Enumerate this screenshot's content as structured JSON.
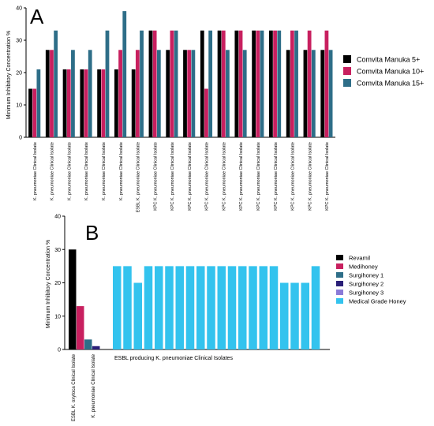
{
  "chart_data": [
    {
      "panel": "A",
      "type": "bar",
      "ylabel": "Minimum Inhibitory Concentration %",
      "ylim": [
        0,
        40
      ],
      "yticks": [
        0,
        10,
        20,
        30,
        40
      ],
      "categories": [
        "K. pneumoniae Clinical Isolate",
        "K. pneumoniae Clinical Isolate",
        "K. pneumoniae Clinical Isolate",
        "K. pneumoniae Clinical Isolate",
        "K. pneumoniae Clinical Isolate",
        "K. pneumoniae Clinical Isolate",
        "ESBL K. pneumoniae Clinical Isolate",
        "KPC K. pneumoniae Clinical Isolate",
        "KPC K. pneumoniae Clinical Isolate",
        "KPC K. pneumoniae Clinical Isolate",
        "KPC K. pneumoniae Clinical Isolate",
        "KPC K. pneumoniae Clinical Isolate",
        "KPC K. pneumoniae Clinical Isolate",
        "KPC K. pneumoniae Clinical Isolate",
        "KPC K. pneumoniae Clinical Isolate",
        "KPC K. pneumoniae Clinical Isolate",
        "KPC K. pneumoniae Clinical Isolate",
        "KPC K. pneumoniae Clinical Isolate"
      ],
      "series": [
        {
          "name": "Comvita Manuka 5+",
          "color": "#000000",
          "values": [
            15,
            27,
            21,
            21,
            21,
            21,
            21,
            33,
            27,
            27,
            33,
            33,
            33,
            33,
            33,
            27,
            27,
            27
          ]
        },
        {
          "name": "Comvita Manuka 10+",
          "color": "#c8205f",
          "values": [
            15,
            27,
            21,
            21,
            21,
            27,
            27,
            33,
            33,
            27,
            15,
            33,
            33,
            33,
            33,
            33,
            33,
            33
          ]
        },
        {
          "name": "Comvita Manuka 15+",
          "color": "#2e6e88",
          "values": [
            21,
            33,
            27,
            27,
            33,
            39,
            33,
            27,
            33,
            27,
            33,
            27,
            27,
            33,
            33,
            33,
            27,
            27
          ]
        }
      ],
      "legend_position": "right"
    },
    {
      "panel": "B",
      "type": "bar",
      "ylabel": "Minimum Inhibitory Concentration %",
      "ylim": [
        0,
        40
      ],
      "yticks": [
        0,
        10,
        20,
        30,
        40
      ],
      "categories_left": [
        "ESBL K. oxytoca Clinical Isolate",
        "K. pneumoniae Clinical Isolate"
      ],
      "group_label": "ESBL producing K. pneumoniae Clinical Isolates",
      "series": [
        {
          "name": "Revamil",
          "color": "#000000",
          "values": [
            30
          ]
        },
        {
          "name": "Medihoney",
          "color": "#c8205f",
          "values": [
            13
          ]
        },
        {
          "name": "Surgihoney 1",
          "color": "#2e6e88",
          "values": [
            3
          ]
        },
        {
          "name": "Surgihoney 2",
          "color": "#2a1f78",
          "values": [
            1
          ]
        },
        {
          "name": "Surgihoney 3",
          "color": "#8a7ad8",
          "values": []
        },
        {
          "name": "Medical Grade Honey",
          "color": "#33c3ee",
          "values": [
            25,
            25,
            20,
            25,
            25,
            25,
            25,
            25,
            25,
            25,
            25,
            25,
            25,
            25,
            25,
            25,
            20,
            20,
            20,
            25
          ]
        }
      ],
      "legend_position": "right"
    }
  ]
}
